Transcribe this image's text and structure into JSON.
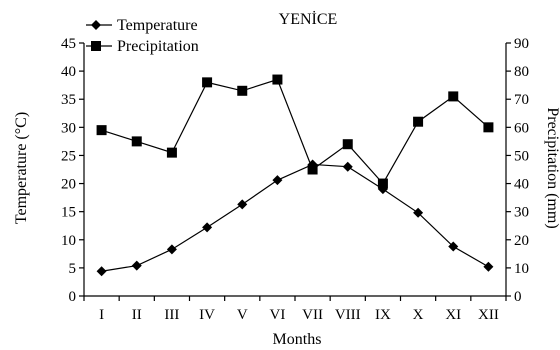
{
  "chart_data": {
    "type": "line",
    "title": "YENİCE",
    "xlabel": "Months",
    "ylabel_left": "Temperature (°C)",
    "ylabel_right": "Precipitation (mm)",
    "categories": [
      "I",
      "II",
      "III",
      "IV",
      "V",
      "VI",
      "VII",
      "VIII",
      "IX",
      "X",
      "XI",
      "XII"
    ],
    "y_left": {
      "lim": [
        0,
        45
      ],
      "ticks": [
        0,
        5,
        10,
        15,
        20,
        25,
        30,
        35,
        40,
        45
      ]
    },
    "y_right": {
      "lim": [
        0,
        90
      ],
      "ticks": [
        0,
        10,
        20,
        30,
        40,
        50,
        60,
        70,
        80,
        90
      ]
    },
    "grid": false,
    "legend_position": "top-left",
    "series": [
      {
        "name": "Temperature",
        "axis": "left",
        "marker": "diamond",
        "color": "#000000",
        "values": [
          4.4,
          5.4,
          8.3,
          12.2,
          16.3,
          20.6,
          23.4,
          23.0,
          19.0,
          14.8,
          8.8,
          5.2
        ]
      },
      {
        "name": "Precipitation",
        "axis": "right",
        "marker": "square",
        "color": "#000000",
        "values": [
          59,
          55,
          51,
          76,
          73,
          77,
          45,
          54,
          40,
          62,
          71,
          60
        ]
      }
    ]
  }
}
